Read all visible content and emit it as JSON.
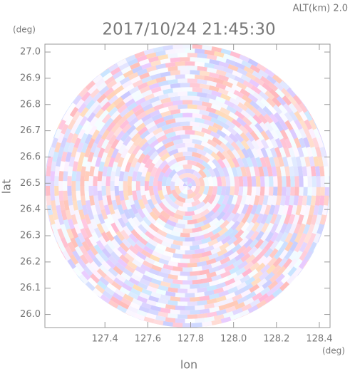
{
  "chart_data": {
    "type": "radar-ppi",
    "title": "2017/10/24 21:45:30",
    "subtitle": "ALT(km) 2.0",
    "x_label": "lon",
    "y_label": "lat",
    "x_unit": "(deg)",
    "y_unit": "(deg)",
    "xlim": [
      127.12,
      128.45
    ],
    "ylim": [
      25.95,
      27.03
    ],
    "xticks": [
      127.4,
      127.6,
      127.8,
      {
        "value": 128,
        "label": "128.0"
      },
      128.2,
      128.4
    ],
    "yticks": [
      {
        "value": 26,
        "label": "26.0"
      },
      26.1,
      26.2,
      26.3,
      26.4,
      26.5,
      26.6,
      26.7,
      26.8,
      26.9,
      {
        "value": 27,
        "label": "27.0"
      }
    ]
  }
}
